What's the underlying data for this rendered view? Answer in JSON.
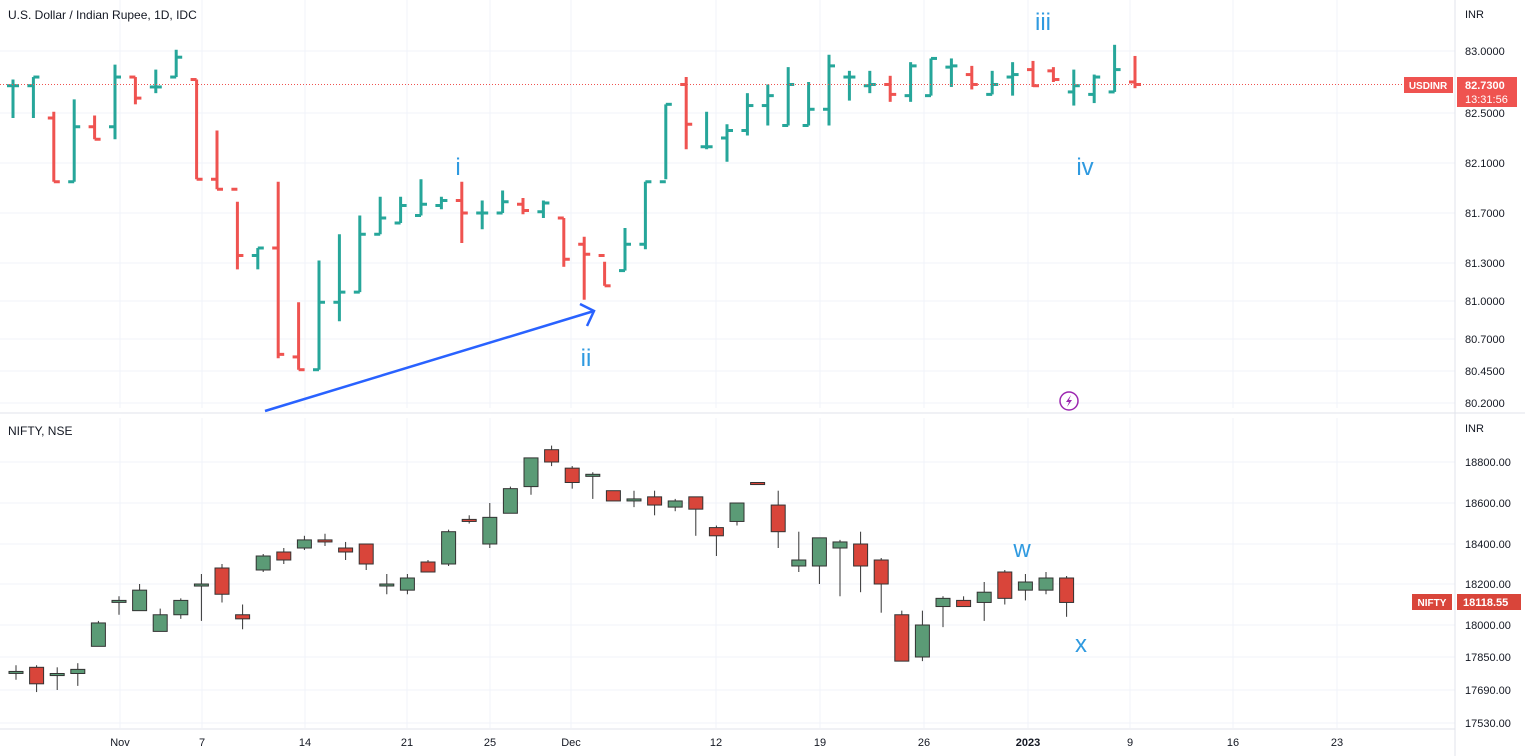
{
  "colors": {
    "up_bar": "#26a69a",
    "down_bar": "#ef5350",
    "candle_up": "#5b9b76",
    "candle_down": "#d9453a",
    "wave_label": "#2f9ae0",
    "trend_arrow": "#2962ff",
    "grid": "#f0f3fa",
    "axis_text": "#131722",
    "lightning_icon": "#9c27b0"
  },
  "top_pane": {
    "title": "U.S. Dollar / Indian Rupee, 1D, IDC",
    "currency": "INR",
    "price_ticks": [
      "83.0000",
      "82.5000",
      "82.1000",
      "81.7000",
      "81.3000",
      "81.0000",
      "80.7000",
      "80.4500",
      "80.2000"
    ],
    "price_badge": {
      "symbol": "USDINR",
      "price": "82.7300",
      "countdown": "13:31:56"
    },
    "wave_labels": [
      "i",
      "ii",
      "iii",
      "iv"
    ],
    "lightning_icon": "lightning-icon"
  },
  "bottom_pane": {
    "title": "NIFTY, NSE",
    "currency": "INR",
    "price_ticks": [
      "18800.00",
      "18600.00",
      "18400.00",
      "18200.00",
      "18000.00",
      "17850.00",
      "17690.00",
      "17530.00"
    ],
    "price_badge": {
      "symbol": "NIFTY",
      "price": "18118.55"
    },
    "wave_labels": [
      "w",
      "x"
    ]
  },
  "time_axis": [
    "Nov",
    "7",
    "14",
    "21",
    "25",
    "Dec",
    "12",
    "19",
    "26",
    "2023",
    "9",
    "16",
    "23"
  ],
  "chart_data": [
    {
      "type": "ohlc",
      "title": "U.S. Dollar / Indian Rupee, 1D, IDC",
      "series": [
        {
          "name": "USDINR",
          "values": [
            [
              82.72,
              82.77,
              82.46,
              82.72
            ],
            [
              82.72,
              82.79,
              82.46,
              82.79
            ],
            [
              82.46,
              82.51,
              81.95,
              81.95
            ],
            [
              81.95,
              82.61,
              81.95,
              82.39
            ],
            [
              82.39,
              82.48,
              82.29,
              82.29
            ],
            [
              82.39,
              82.89,
              82.29,
              82.79
            ],
            [
              82.79,
              82.79,
              82.57,
              82.62
            ],
            [
              82.71,
              82.85,
              82.66,
              82.71
            ],
            [
              82.79,
              83.01,
              82.79,
              82.95
            ],
            [
              82.77,
              82.77,
              81.97,
              81.97
            ],
            [
              81.97,
              82.36,
              81.89,
              81.89
            ],
            [
              81.89,
              81.79,
              81.25,
              81.36
            ],
            [
              81.36,
              81.42,
              81.25,
              81.42
            ],
            [
              81.42,
              81.95,
              80.55,
              80.58
            ],
            [
              80.56,
              80.99,
              80.46,
              80.46
            ],
            [
              80.46,
              81.32,
              80.46,
              80.99
            ],
            [
              80.99,
              81.53,
              80.84,
              81.07
            ],
            [
              81.07,
              81.68,
              81.07,
              81.53
            ],
            [
              81.53,
              81.83,
              81.53,
              81.66
            ],
            [
              81.62,
              81.83,
              81.62,
              81.76
            ],
            [
              81.68,
              81.97,
              81.68,
              81.77
            ],
            [
              81.76,
              81.83,
              81.73,
              81.8
            ],
            [
              81.8,
              81.95,
              81.46,
              81.7
            ],
            [
              81.7,
              81.8,
              81.57,
              81.7
            ],
            [
              81.7,
              81.88,
              81.7,
              81.79
            ],
            [
              81.77,
              81.82,
              81.69,
              81.72
            ],
            [
              81.71,
              81.8,
              81.66,
              81.78
            ],
            [
              81.66,
              81.66,
              81.27,
              81.33
            ],
            [
              81.45,
              81.51,
              81.01,
              81.37
            ],
            [
              81.36,
              81.31,
              81.12,
              81.12
            ],
            [
              81.24,
              81.58,
              81.24,
              81.45
            ],
            [
              81.45,
              81.95,
              81.41,
              81.95
            ],
            [
              81.95,
              82.57,
              81.97,
              82.57
            ],
            [
              82.73,
              82.79,
              82.21,
              82.41
            ],
            [
              82.23,
              82.51,
              82.21,
              82.23
            ],
            [
              82.3,
              82.41,
              82.11,
              82.36
            ],
            [
              82.36,
              82.66,
              82.32,
              82.56
            ],
            [
              82.56,
              82.73,
              82.4,
              82.64
            ],
            [
              82.4,
              82.87,
              82.4,
              82.73
            ],
            [
              82.4,
              82.75,
              82.4,
              82.53
            ],
            [
              82.53,
              82.97,
              82.4,
              82.88
            ],
            [
              82.79,
              82.84,
              82.6,
              82.79
            ],
            [
              82.72,
              82.84,
              82.66,
              82.73
            ],
            [
              82.73,
              82.8,
              82.59,
              82.65
            ],
            [
              82.64,
              82.91,
              82.59,
              82.88
            ],
            [
              82.64,
              82.94,
              82.64,
              82.94
            ],
            [
              82.87,
              82.94,
              82.71,
              82.88
            ],
            [
              82.81,
              82.88,
              82.69,
              82.73
            ],
            [
              82.65,
              82.84,
              82.65,
              82.73
            ],
            [
              82.79,
              82.91,
              82.64,
              82.81
            ],
            [
              82.85,
              82.92,
              82.71,
              82.72
            ],
            [
              82.84,
              82.87,
              82.75,
              82.77
            ],
            [
              82.67,
              82.85,
              82.56,
              82.72
            ],
            [
              82.65,
              82.81,
              82.58,
              82.79
            ],
            [
              82.67,
              83.05,
              82.67,
              82.85
            ],
            [
              82.75,
              82.96,
              82.7,
              82.73
            ]
          ]
        }
      ],
      "ylabel": "INR",
      "ylim": [
        80.2,
        83.0
      ],
      "current_price": 82.73
    },
    {
      "type": "candlestick",
      "title": "NIFTY, NSE",
      "series": [
        {
          "name": "NIFTY",
          "values": [
            [
              17780,
              17810,
              17740,
              17780
            ],
            [
              17800,
              17810,
              17680,
              17720
            ],
            [
              17760,
              17800,
              17690,
              17770
            ],
            [
              17770,
              17820,
              17710,
              17790
            ],
            [
              17900,
              18020,
              17900,
              18010
            ],
            [
              18120,
              18140,
              18050,
              18120
            ],
            [
              18070,
              18200,
              18070,
              18170
            ],
            [
              17970,
              18080,
              17970,
              18050
            ],
            [
              18050,
              18130,
              18030,
              18120
            ],
            [
              18190,
              18250,
              18020,
              18200
            ],
            [
              18280,
              18300,
              18110,
              18150
            ],
            [
              18050,
              18100,
              17980,
              18030
            ],
            [
              18270,
              18350,
              18260,
              18340
            ],
            [
              18360,
              18380,
              18300,
              18320
            ],
            [
              18380,
              18440,
              18370,
              18420
            ],
            [
              18420,
              18450,
              18390,
              18410
            ],
            [
              18380,
              18410,
              18320,
              18360
            ],
            [
              18400,
              18390,
              18270,
              18300
            ],
            [
              18200,
              18250,
              18150,
              18200
            ],
            [
              18170,
              18250,
              18150,
              18230
            ],
            [
              18310,
              18320,
              18270,
              18260
            ],
            [
              18300,
              18470,
              18290,
              18460
            ],
            [
              18520,
              18540,
              18500,
              18510
            ],
            [
              18400,
              18600,
              18380,
              18530
            ],
            [
              18550,
              18680,
              18550,
              18670
            ],
            [
              18680,
              18800,
              18640,
              18820
            ],
            [
              18860,
              18880,
              18780,
              18800
            ],
            [
              18770,
              18780,
              18670,
              18700
            ],
            [
              18730,
              18750,
              18620,
              18740
            ],
            [
              18660,
              18640,
              18610,
              18610
            ],
            [
              18610,
              18660,
              18580,
              18620
            ],
            [
              18630,
              18660,
              18540,
              18590
            ],
            [
              18580,
              18620,
              18560,
              18610
            ],
            [
              18630,
              18620,
              18440,
              18570
            ],
            [
              18480,
              18490,
              18340,
              18440
            ],
            [
              18510,
              18570,
              18490,
              18600
            ],
            [
              18700,
              18700,
              18690,
              18690
            ],
            [
              18590,
              18660,
              18380,
              18460
            ],
            [
              18290,
              18460,
              18260,
              18320
            ],
            [
              18290,
              18360,
              18200,
              18430
            ],
            [
              18380,
              18420,
              18140,
              18410
            ],
            [
              18400,
              18460,
              18160,
              18290
            ],
            [
              18320,
              18330,
              18060,
              18200
            ],
            [
              18050,
              18070,
              17830,
              17830
            ],
            [
              17850,
              18070,
              17830,
              18000
            ],
            [
              18090,
              18140,
              17990,
              18130
            ],
            [
              18120,
              18140,
              18100,
              18090
            ],
            [
              18110,
              18210,
              18020,
              18160
            ],
            [
              18260,
              18270,
              18100,
              18130
            ],
            [
              18170,
              18250,
              18120,
              18210
            ],
            [
              18170,
              18260,
              18150,
              18230
            ],
            [
              18230,
              18240,
              18040,
              18110
            ]
          ]
        }
      ],
      "ylabel": "INR",
      "ylim": [
        17530,
        18800
      ],
      "current_price": 18118.55
    }
  ]
}
